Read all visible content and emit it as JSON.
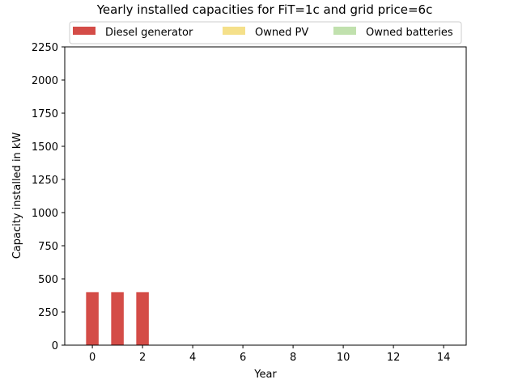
{
  "chart_data": {
    "type": "bar",
    "stacked": true,
    "title": "Yearly installed capacities for FiT=1c and grid price=6c",
    "xlabel": "Year",
    "ylabel": "Capacity installed in kW",
    "x": [
      0,
      1,
      2
    ],
    "series": [
      {
        "name": "Diesel generator",
        "color": "#d44c47",
        "values": [
          400,
          400,
          400
        ]
      },
      {
        "name": "Owned PV",
        "color": "#f5e08a",
        "values": [
          0,
          0,
          0
        ]
      },
      {
        "name": "Owned batteries",
        "color": "#c1e1ae",
        "values": [
          0,
          0,
          0
        ]
      }
    ],
    "xlim": [
      -1.1,
      14.9
    ],
    "ylim": [
      0,
      2250
    ],
    "xticks": [
      "0",
      "2",
      "4",
      "6",
      "8",
      "10",
      "12",
      "14"
    ],
    "yticks": [
      "0",
      "250",
      "500",
      "750",
      "1000",
      "1250",
      "1500",
      "1750",
      "2000",
      "2250"
    ],
    "grid": false,
    "legend_position": "top-center"
  }
}
